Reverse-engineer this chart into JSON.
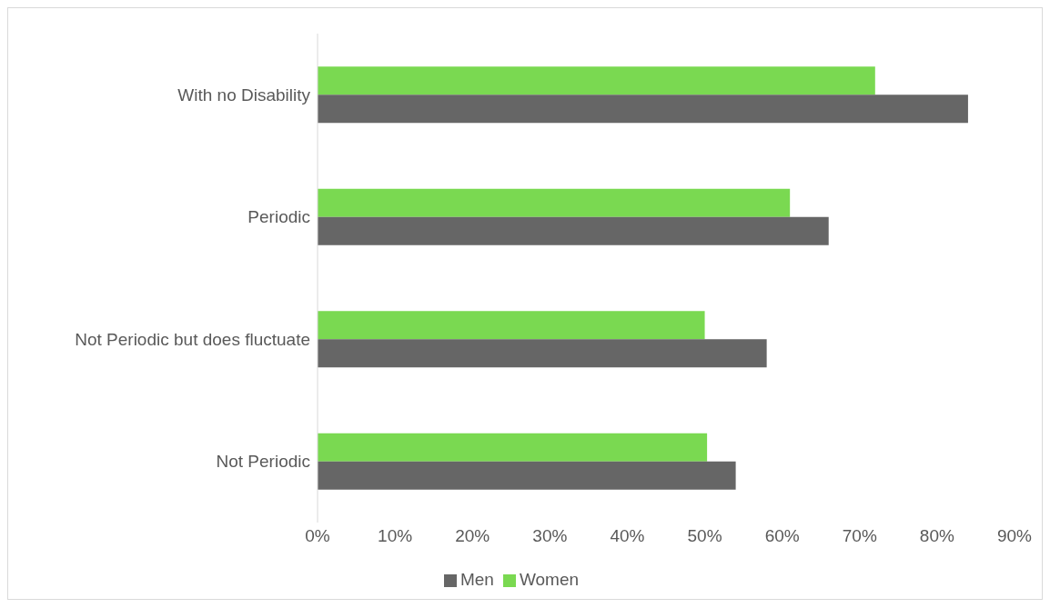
{
  "chart_data": {
    "type": "bar",
    "orientation": "horizontal",
    "categories": [
      "With no Disability",
      "Periodic",
      "Not Periodic but does fluctuate",
      "Not Periodic"
    ],
    "series": [
      {
        "name": "Women",
        "color": "#7ad951",
        "values": [
          72,
          61,
          50,
          50.3
        ]
      },
      {
        "name": "Men",
        "color": "#666666",
        "values": [
          84,
          66,
          58,
          54
        ]
      }
    ],
    "xlim": [
      0,
      90
    ],
    "xticks": [
      {
        "value": 0,
        "label": "0%"
      },
      {
        "value": 10,
        "label": "10%"
      },
      {
        "value": 20,
        "label": "20%"
      },
      {
        "value": 30,
        "label": "30%"
      },
      {
        "value": 40,
        "label": "40%"
      },
      {
        "value": 50,
        "label": "50%"
      },
      {
        "value": 60,
        "label": "60%"
      },
      {
        "value": 70,
        "label": "70%"
      },
      {
        "value": 80,
        "label": "80%"
      },
      {
        "value": 90,
        "label": "90%"
      }
    ],
    "grid": false,
    "legend": "bottom"
  }
}
